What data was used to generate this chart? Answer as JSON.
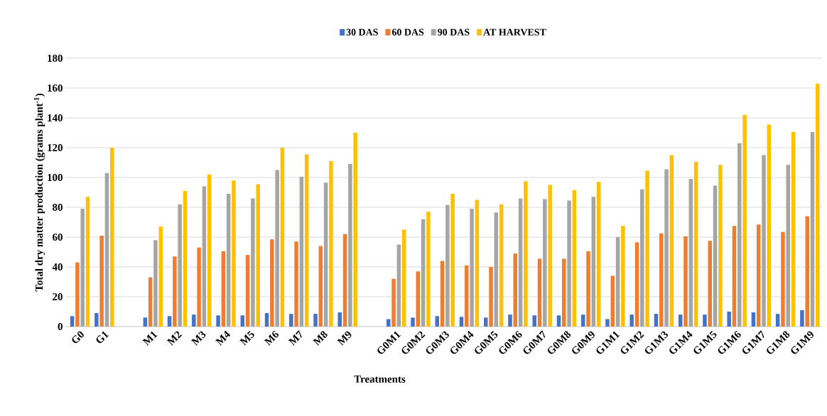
{
  "chart_data": {
    "type": "bar",
    "xlabel": "Treatments",
    "ylabel": "Total dry matter production (grams plant$^{-1}$)",
    "categories": [
      "G0",
      "G1",
      null,
      "M1",
      "M2",
      "M3",
      "M4",
      "M5",
      "M6",
      "M7",
      "M8",
      "M9",
      null,
      "G0M1",
      "G0M2",
      "G0M3",
      "G0M4",
      "G0M5",
      "G0M6",
      "G0M7",
      "G0M8",
      "G0M9",
      "G1M1",
      "G1M2",
      "G1M3",
      "G1M4",
      "G1M5",
      "G1M6",
      "G1M7",
      "G1M8",
      "G1M9"
    ],
    "series": [
      {
        "name": "30 DAS",
        "color": "#4472c4",
        "values": [
          7,
          9,
          null,
          6,
          7,
          8,
          7.5,
          7.5,
          9,
          8.5,
          8.5,
          9.5,
          null,
          5,
          6,
          7,
          6.5,
          6,
          8,
          7.5,
          7.5,
          8,
          5,
          8,
          8.5,
          8,
          8,
          10,
          9.5,
          8.5,
          11
        ]
      },
      {
        "name": "60 DAS",
        "color": "#ed7d31",
        "values": [
          43,
          61,
          null,
          33,
          47,
          53,
          50.5,
          48,
          58.5,
          57,
          54,
          62,
          null,
          32,
          37,
          44,
          41,
          40,
          49,
          45.5,
          45.5,
          50.5,
          34,
          56.5,
          62.5,
          60.5,
          57.5,
          67.5,
          68.5,
          63.5,
          74
        ]
      },
      {
        "name": "90 DAS",
        "color": "#a5a5a5",
        "values": [
          79,
          103,
          null,
          58,
          82,
          94,
          89,
          86,
          105,
          100.5,
          96.5,
          109,
          null,
          55,
          72,
          81.5,
          79,
          76.5,
          86,
          85.5,
          84.5,
          87,
          60,
          92,
          105.5,
          99,
          94.5,
          123,
          115,
          108.5,
          130.5
        ]
      },
      {
        "name": "AT HARVEST",
        "color": "#ffc000",
        "values": [
          87,
          120,
          null,
          67,
          91,
          102,
          98,
          95.5,
          120,
          115.5,
          111,
          130,
          null,
          65,
          77,
          89,
          85,
          82,
          97.5,
          95,
          91.5,
          97,
          67.5,
          104.5,
          115,
          110.5,
          108.5,
          142,
          135.5,
          130.5,
          163
        ]
      }
    ],
    "ylim": [
      0,
      180
    ],
    "yticks": [
      0,
      20,
      40,
      60,
      80,
      100,
      120,
      140,
      160,
      180
    ],
    "grid": "y",
    "legend": "top"
  }
}
